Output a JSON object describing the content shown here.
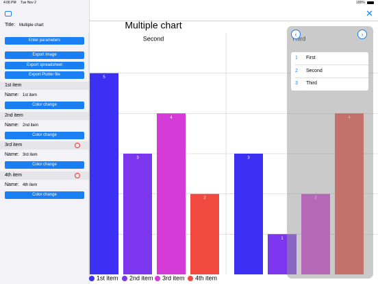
{
  "status": {
    "time": "4:06 PM",
    "date": "Tue Nov 2",
    "battery": "100%"
  },
  "sidebar": {
    "title_label": "Title:",
    "title_value": "Multiple chart",
    "buttons": [
      "Enter parameters",
      "Export image",
      "Export spreadsheet",
      "Export Plotter file"
    ],
    "items": [
      {
        "header": "1st item",
        "name_label": "Name:",
        "name": "1st item",
        "button": "Color change"
      },
      {
        "header": "2nd item",
        "name_label": "Name:",
        "name": "2nd item",
        "button": "Color change"
      },
      {
        "header": "3rd item",
        "name_label": "Name:",
        "name": "3rd item",
        "button": "Color change"
      },
      {
        "header": "4th item",
        "name_label": "Name:",
        "name": "4th item",
        "button": "Color change"
      }
    ]
  },
  "popover": {
    "rows": [
      {
        "number": "1",
        "label": "First"
      },
      {
        "number": "2",
        "label": "Second"
      },
      {
        "number": "3",
        "label": "Third"
      }
    ]
  },
  "chart_data": {
    "type": "bar",
    "title": "Multiple chart",
    "categories": [
      "Second",
      "Third"
    ],
    "series": [
      {
        "name": "1st item",
        "color": "#3b30f4",
        "values": [
          5,
          3
        ]
      },
      {
        "name": "2nd item",
        "color": "#7c36ee",
        "values": [
          3,
          1
        ]
      },
      {
        "name": "3rd item",
        "color": "#d43bd6",
        "values": [
          4,
          2
        ]
      },
      {
        "name": "4th item",
        "color": "#f24a40",
        "values": [
          2,
          4
        ]
      }
    ],
    "ylim": [
      0,
      6
    ],
    "yticks": [
      1,
      2,
      3,
      4,
      5
    ],
    "grid": true
  }
}
